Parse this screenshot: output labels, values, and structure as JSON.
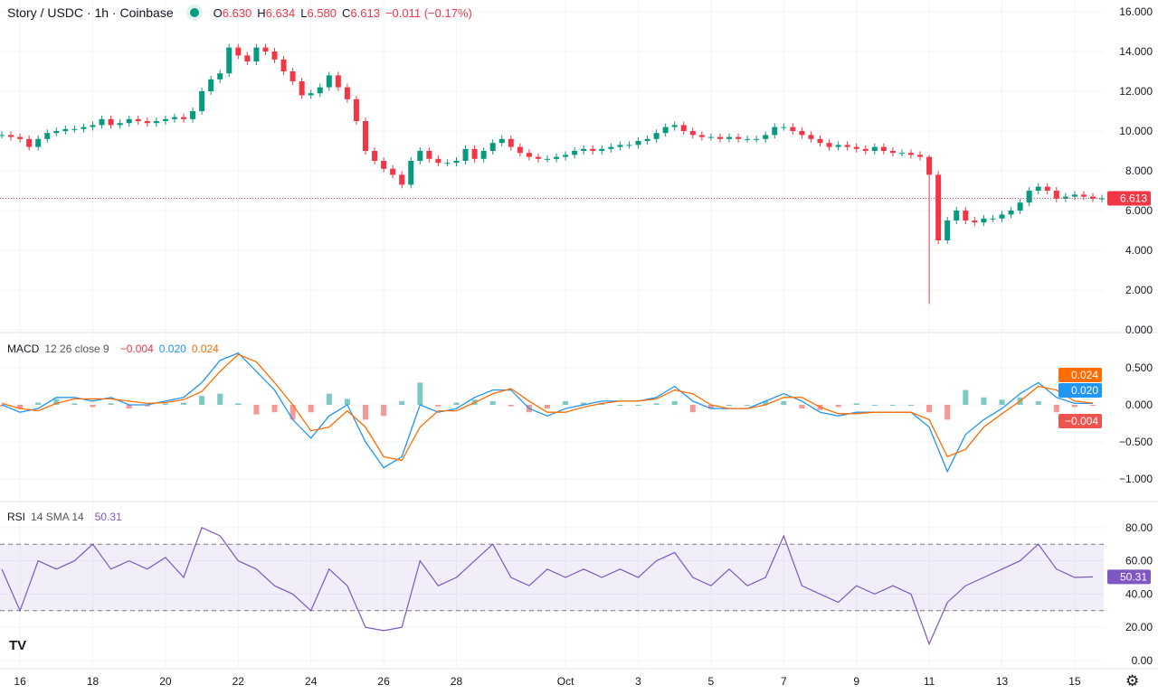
{
  "header": {
    "symbol": "Story / USDC · 1h · Coinbase",
    "o_label": "O",
    "o": "6.630",
    "h_label": "H",
    "h": "6.634",
    "l_label": "L",
    "l": "6.580",
    "c_label": "C",
    "c": "6.613",
    "change": "−0.011 (−0.17%)",
    "status_color": "#089981"
  },
  "macd_legend": {
    "name": "MACD",
    "params": "12 26 close 9",
    "hist": "−0.004",
    "macd": "0.020",
    "signal": "0.024"
  },
  "rsi_legend": {
    "name": "RSI",
    "params": "14 SMA 14",
    "value": "50.31"
  },
  "colors": {
    "up": "#089981",
    "down": "#f23645",
    "macd": "#2962ff",
    "macd_line": "#2196f3",
    "signal": "#ff6d00",
    "rsi": "#7e57c2",
    "hist_up": "#26a69a",
    "hist_down": "#ef5350"
  },
  "chart_data": [
    {
      "type": "candlestick",
      "title": "Story / USDC · 1h · Coinbase",
      "series_start": "09-15 12:00",
      "interval_hours": 6,
      "close": [
        9.8,
        9.7,
        9.6,
        9.2,
        9.6,
        9.9,
        10.0,
        10.1,
        10.1,
        10.2,
        10.3,
        10.6,
        10.3,
        10.4,
        10.6,
        10.5,
        10.4,
        10.5,
        10.6,
        10.7,
        10.6,
        11.0,
        12.0,
        12.6,
        12.9,
        14.2,
        13.8,
        13.5,
        14.2,
        14.0,
        13.6,
        13.0,
        12.5,
        11.8,
        11.9,
        12.2,
        12.8,
        12.2,
        11.6,
        10.5,
        9.0,
        8.5,
        8.1,
        7.8,
        7.3,
        8.5,
        9.0,
        8.6,
        8.4,
        8.4,
        8.5,
        9.1,
        8.6,
        9.0,
        9.4,
        9.6,
        9.2,
        8.9,
        8.7,
        8.6,
        8.6,
        8.7,
        8.8,
        9.0,
        9.1,
        9.0,
        9.1,
        9.2,
        9.3,
        9.3,
        9.5,
        9.6,
        9.9,
        10.2,
        10.3,
        10.0,
        9.8,
        9.7,
        9.7,
        9.6,
        9.7,
        9.6,
        9.6,
        9.6,
        9.8,
        10.2,
        10.2,
        10.0,
        9.8,
        9.6,
        9.4,
        9.2,
        9.3,
        9.2,
        9.1,
        9.0,
        9.2,
        9.0,
        8.9,
        8.9,
        8.8,
        8.7,
        7.8,
        4.5,
        5.5,
        6.0,
        5.5,
        5.4,
        5.6,
        5.6,
        5.8,
        6.0,
        6.4,
        7.0,
        7.2,
        7.0,
        6.6,
        6.7,
        6.8,
        6.7,
        6.6,
        6.613
      ],
      "notable_wick": {
        "time": "10-11 00:00",
        "high": 8.8,
        "low": 1.3
      },
      "last_price": "6.613",
      "yticks": [
        "0.000",
        "2.000",
        "4.000",
        "6.000",
        "8.000",
        "10.000",
        "12.000",
        "14.000",
        "16.000"
      ],
      "ylim": [
        0,
        16
      ]
    },
    {
      "type": "line",
      "title": "MACD 12 26 close 9",
      "interval_hours": 12,
      "series": [
        {
          "name": "MACD",
          "values": [
            0.0,
            -0.1,
            -0.05,
            0.1,
            0.1,
            0.05,
            0.1,
            0.0,
            0.0,
            0.05,
            0.1,
            0.3,
            0.6,
            0.7,
            0.45,
            0.2,
            -0.2,
            -0.45,
            -0.15,
            0.0,
            -0.5,
            -0.85,
            -0.7,
            0.0,
            -0.1,
            -0.05,
            0.1,
            0.2,
            0.2,
            -0.05,
            -0.15,
            -0.05,
            0.0,
            0.05,
            0.05,
            0.05,
            0.1,
            0.25,
            0.05,
            -0.05,
            -0.05,
            -0.05,
            0.05,
            0.15,
            0.05,
            -0.1,
            -0.15,
            -0.1,
            -0.1,
            -0.1,
            -0.1,
            -0.3,
            -0.9,
            -0.4,
            -0.2,
            -0.05,
            0.15,
            0.3,
            0.1,
            0.02,
            0.02
          ]
        },
        {
          "name": "Signal",
          "values": [
            0.02,
            -0.05,
            -0.08,
            0.02,
            0.08,
            0.08,
            0.08,
            0.05,
            0.02,
            0.03,
            0.07,
            0.18,
            0.45,
            0.68,
            0.58,
            0.3,
            0.0,
            -0.35,
            -0.3,
            -0.08,
            -0.3,
            -0.7,
            -0.75,
            -0.3,
            -0.08,
            -0.08,
            0.03,
            0.15,
            0.22,
            0.05,
            -0.1,
            -0.1,
            -0.03,
            0.02,
            0.05,
            0.05,
            0.08,
            0.2,
            0.15,
            0.0,
            -0.05,
            -0.05,
            0.0,
            0.1,
            0.1,
            -0.03,
            -0.12,
            -0.12,
            -0.1,
            -0.1,
            -0.1,
            -0.2,
            -0.7,
            -0.6,
            -0.3,
            -0.12,
            0.05,
            0.25,
            0.2,
            0.05,
            0.024
          ]
        }
      ],
      "last_values": {
        "macd": "0.020",
        "signal": "0.024",
        "hist": "−0.004"
      },
      "yticks": [
        "0.500",
        "0.000",
        "−0.500",
        "−1.000"
      ],
      "ylim": [
        -1.2,
        0.7
      ]
    },
    {
      "type": "line",
      "title": "RSI 14 SMA 14",
      "interval_hours": 12,
      "values": [
        55,
        30,
        60,
        55,
        60,
        70,
        55,
        60,
        55,
        62,
        50,
        80,
        75,
        60,
        55,
        45,
        40,
        30,
        55,
        45,
        20,
        18,
        20,
        60,
        45,
        50,
        60,
        70,
        50,
        45,
        55,
        50,
        55,
        50,
        55,
        50,
        60,
        65,
        50,
        45,
        55,
        45,
        50,
        75,
        45,
        40,
        35,
        45,
        40,
        45,
        40,
        10,
        35,
        45,
        50,
        55,
        60,
        70,
        55,
        50,
        50.31
      ],
      "bands": [
        30,
        70
      ],
      "last": "50.31",
      "yticks": [
        "0.00",
        "20.00",
        "40.00",
        "60.00",
        "80.00"
      ],
      "ylim": [
        0,
        100
      ]
    }
  ],
  "xaxis": {
    "ticks": [
      {
        "label": "16",
        "date": "09-16"
      },
      {
        "label": "18",
        "date": "09-18"
      },
      {
        "label": "20",
        "date": "09-20"
      },
      {
        "label": "22",
        "date": "09-22"
      },
      {
        "label": "24",
        "date": "09-24"
      },
      {
        "label": "26",
        "date": "09-26"
      },
      {
        "label": "28",
        "date": "09-28"
      },
      {
        "label": "Oct",
        "date": "10-01"
      },
      {
        "label": "3",
        "date": "10-03"
      },
      {
        "label": "5",
        "date": "10-05"
      },
      {
        "label": "7",
        "date": "10-07"
      },
      {
        "label": "9",
        "date": "10-09"
      },
      {
        "label": "11",
        "date": "10-11"
      },
      {
        "label": "13",
        "date": "10-13"
      },
      {
        "label": "15",
        "date": "10-15"
      }
    ]
  },
  "logo": "TV",
  "icons": {
    "settings": "gear-icon"
  }
}
